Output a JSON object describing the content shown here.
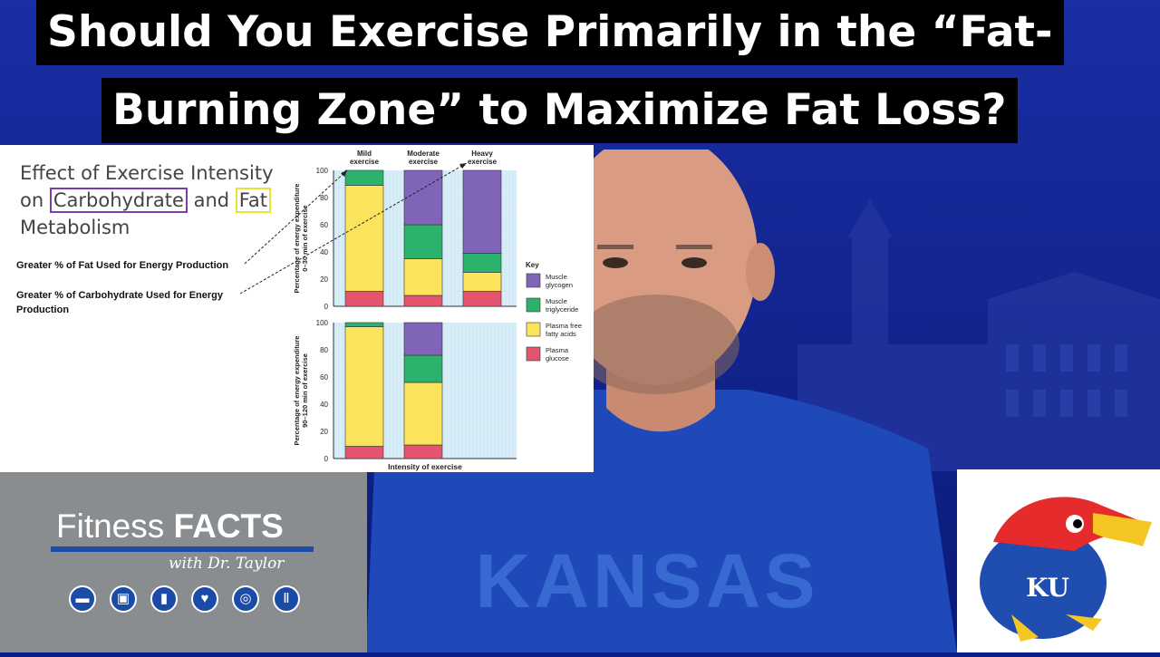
{
  "video_title": {
    "line1": "Should You Exercise Primarily in the “Fat-",
    "line2": "Burning Zone” to Maximize Fat Loss?"
  },
  "slide": {
    "heading_line1": "Effect of Exercise Intensity",
    "heading_on": "on ",
    "heading_carb": "Carbohydrate",
    "heading_and": " and ",
    "heading_fat": "Fat",
    "heading_line3": "Metabolism",
    "note_fat": "Greater % of Fat Used for Energy Production",
    "note_carb": "Greater % of Carbohydrate Used for Energy Production"
  },
  "chart_data": {
    "type": "bar",
    "stacked": true,
    "categories": [
      "Mild exercise",
      "Moderate exercise",
      "Heavy exercise"
    ],
    "xlabel": "Intensity of exercise",
    "legend_title": "Key",
    "legend_position": "right",
    "panels": [
      {
        "ylabel": "Percentage of energy expenditure 0–30 min of exercise",
        "ylim": [
          0,
          100
        ],
        "yticks": [
          "0",
          "20",
          "40",
          "60",
          "80",
          "100"
        ],
        "series": [
          {
            "name": "Plasma glucose",
            "color": "#e5546f",
            "values": [
              11,
              8,
              11
            ]
          },
          {
            "name": "Plasma free fatty acids",
            "color": "#fbe35c",
            "values": [
              78,
              27,
              14
            ]
          },
          {
            "name": "Muscle triglyceride",
            "color": "#2bb36e",
            "values": [
              11,
              25,
              14
            ]
          },
          {
            "name": "Muscle glycogen",
            "color": "#7f64b8",
            "values": [
              0,
              40,
              61
            ]
          }
        ]
      },
      {
        "ylabel": "Percentage of energy expenditure 90–120 min of exercise",
        "ylim": [
          0,
          100
        ],
        "yticks": [
          "0",
          "20",
          "40",
          "60",
          "80",
          "100"
        ],
        "series": [
          {
            "name": "Plasma glucose",
            "color": "#e5546f",
            "values": [
              9,
              10,
              null
            ]
          },
          {
            "name": "Plasma free fatty acids",
            "color": "#fbe35c",
            "values": [
              88,
              46,
              null
            ]
          },
          {
            "name": "Muscle triglyceride",
            "color": "#2bb36e",
            "values": [
              3,
              20,
              null
            ]
          },
          {
            "name": "Muscle glycogen",
            "color": "#7f64b8",
            "values": [
              0,
              24,
              null
            ]
          }
        ]
      }
    ],
    "legend": [
      {
        "line1": "Muscle",
        "line2": "glycogen",
        "color": "#7f64b8"
      },
      {
        "line1": "Muscle",
        "line2": "triglyceride",
        "color": "#2bb36e"
      },
      {
        "line1": "Plasma free",
        "line2": "fatty acids",
        "color": "#fbe35c"
      },
      {
        "line1": "Plasma",
        "line2": "glucose",
        "color": "#e5546f"
      }
    ],
    "category_labels": [
      {
        "line1": "Mild",
        "line2": "exercise"
      },
      {
        "line1": "Moderate",
        "line2": "exercise"
      },
      {
        "line1": "Heavy",
        "line2": "exercise"
      }
    ],
    "ylabel_lines": [
      [
        "Percentage of energy expenditure",
        "0–30 min of exercise"
      ],
      [
        "Percentage of energy expenditure",
        "90–120 min of exercise"
      ]
    ]
  },
  "branding": {
    "fitness": "Fitness ",
    "facts": "FACTS",
    "with": "with Dr. Taylor",
    "icons": [
      "dumbbell-icon",
      "scale-icon",
      "bottle-icon",
      "heart-icon",
      "cyclist-icon",
      "utensils-icon"
    ],
    "icon_glyphs": [
      "▬",
      "▣",
      "▮",
      "♥",
      "◎",
      "Ⅱ"
    ],
    "ku_monogram": "KU",
    "accent": "#1c4ea8"
  },
  "shirt_text": "KANSAS"
}
